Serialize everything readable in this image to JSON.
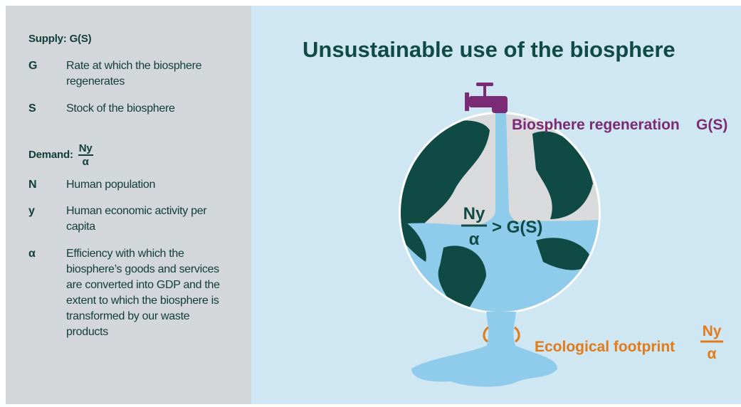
{
  "legend": {
    "supply": {
      "heading": "Supply: G(S)",
      "items": [
        {
          "symbol": "G",
          "text": "Rate at which the biosphere regenerates"
        },
        {
          "symbol": "S",
          "text": "Stock of the biosphere"
        }
      ]
    },
    "demand": {
      "heading": "Demand:",
      "numerator": "Ny",
      "denominator": "α",
      "items": [
        {
          "symbol": "N",
          "text": "Human population"
        },
        {
          "symbol": "y",
          "text": "Human economic activity per capita"
        },
        {
          "symbol": "α",
          "text": "Efficiency with which the biosphere’s goods and services are converted into GDP and the extent to which the biosphere is transformed by our waste products"
        }
      ]
    }
  },
  "illustration": {
    "title": "Unsustainable use of the biosphere",
    "regeneration_label": "Biosphere regeneration",
    "regeneration_symbol": "G(S)",
    "inequality": {
      "numerator": "Ny",
      "denominator": "α",
      "relation": "> G(S)"
    },
    "footprint_label": "Ecological footprint",
    "footprint_numerator": "Ny",
    "footprint_denominator": "α"
  }
}
